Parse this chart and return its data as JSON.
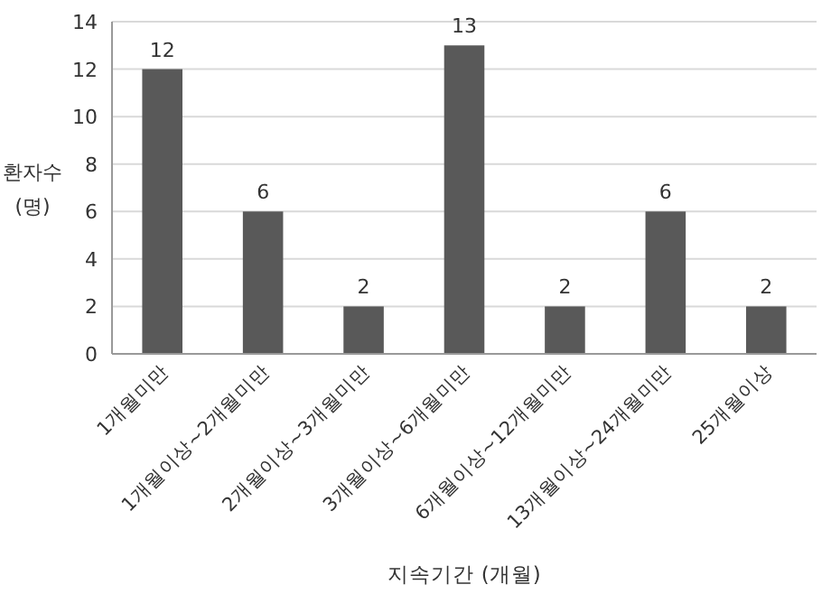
{
  "chart_data": {
    "type": "bar",
    "xlabel": "지속기간 (개월)",
    "ylabel": "환자수 (명)",
    "categories": [
      "1개월미만",
      "1개월이상~2개월미만",
      "2개월이상~3개월미만",
      "3개월이상~6개월미만",
      "6개월이상~12개월미만",
      "13개월이상~24개월미만",
      "25개월이상"
    ],
    "values": [
      12,
      6,
      2,
      13,
      2,
      6,
      2
    ],
    "color": "#595959",
    "ylim": [
      0,
      14
    ],
    "yticks": [
      0,
      2,
      4,
      6,
      8,
      10,
      12,
      14
    ],
    "grid": "y",
    "data_labels": true
  }
}
